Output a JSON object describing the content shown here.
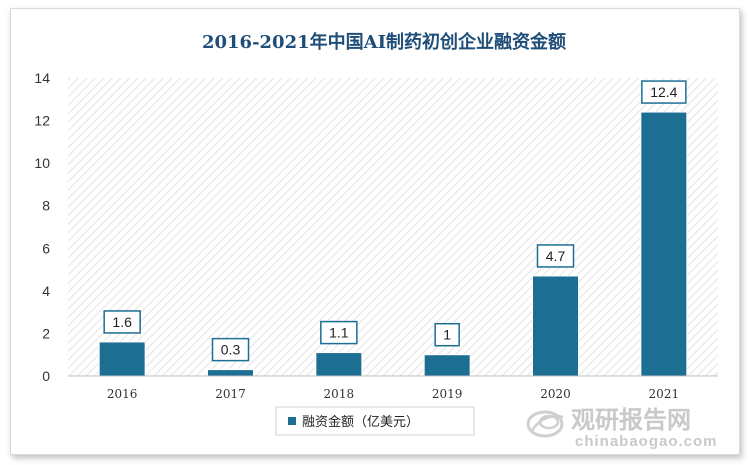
{
  "chart_data": {
    "type": "bar",
    "title": "2016-2021年中国AI制药初创企业融资金额",
    "categories": [
      "2016",
      "2017",
      "2018",
      "2019",
      "2020",
      "2021"
    ],
    "series": [
      {
        "name": "融资金额（亿美元）",
        "values": [
          1.6,
          0.3,
          1.1,
          1,
          4.7,
          12.4
        ]
      }
    ],
    "data_labels": [
      "1.6",
      "0.3",
      "1.1",
      "1",
      "4.7",
      "12.4"
    ],
    "y_ticks": [
      "0",
      "2",
      "4",
      "6",
      "8",
      "10",
      "12",
      "14"
    ],
    "ylim": [
      0,
      14
    ],
    "xlabel": "",
    "ylabel": "",
    "grid": false,
    "legend_position": "bottom",
    "colors": {
      "bar": "#1c6e93",
      "title": "#1f4e79"
    }
  },
  "watermark": {
    "name": "观研报告网",
    "site": "chinabaogao.com",
    "icon": "logo-swirl-icon"
  }
}
